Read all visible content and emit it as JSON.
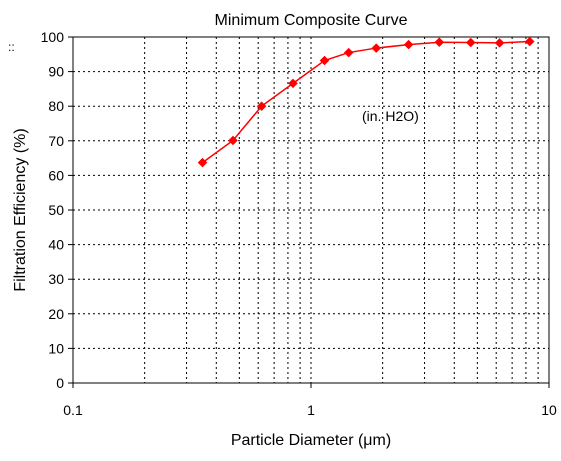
{
  "chart_data": {
    "type": "line",
    "title": "Minimum Composite Curve",
    "xlabel": "Particle Diameter (μm)",
    "ylabel": "Filtration Efficiency (%)",
    "xscale": "log",
    "xlim": [
      0.1,
      10
    ],
    "ylim": [
      0,
      100
    ],
    "x_ticks": [
      "0.1",
      "1",
      "10"
    ],
    "y_ticks": [
      "0",
      "10",
      "20",
      "30",
      "40",
      "50",
      "60",
      "70",
      "80",
      "90",
      "100"
    ],
    "grid": "dotted",
    "annotation": "(in. H2O)",
    "corner_mark": "::",
    "series": [
      {
        "color": "#ff0000",
        "marker": "diamond",
        "x": [
          0.35,
          0.47,
          0.62,
          0.84,
          1.14,
          1.44,
          1.88,
          2.57,
          3.46,
          4.69,
          6.2,
          8.3
        ],
        "y": [
          63.7,
          70.1,
          80.0,
          86.6,
          93.2,
          95.5,
          96.8,
          97.8,
          98.5,
          98.4,
          98.3,
          98.7
        ]
      }
    ]
  }
}
